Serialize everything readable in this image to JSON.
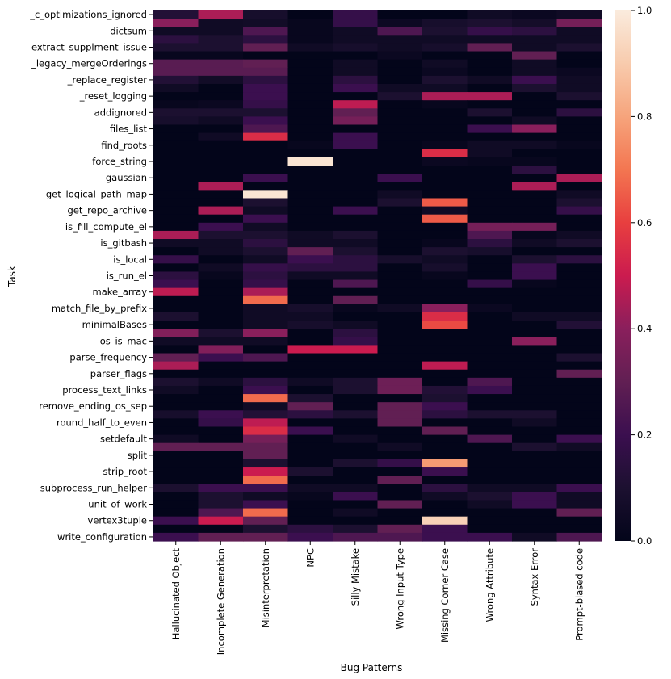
{
  "chart_data": {
    "type": "heatmap",
    "xlabel": "Bug Patterns",
    "ylabel": "Task",
    "x_categories": [
      "Hallucinated Object",
      "Incomplete Generation",
      "Misinterpretation",
      "NPC",
      "Silly Mistake",
      "Wrong Input Type",
      "Missing Corner Case",
      "Wrong Attribute",
      "Syntax Error",
      "Prompt-biased code"
    ],
    "y_labeled_rows": [
      "_c_optimizations_ignored",
      "_dictsum",
      "_extract_supplment_issue",
      "_legacy_mergeOrderings",
      "_replace_register",
      "_reset_logging",
      "addignored",
      "files_list",
      "find_roots",
      "force_string",
      "gaussian",
      "get_logical_path_map",
      "get_repo_archive",
      "is_fill_compute_el",
      "is_gitbash",
      "is_local",
      "is_run_el",
      "make_array",
      "match_file_by_prefix",
      "minimalBases",
      "os_is_mac",
      "parse_frequency",
      "parser_flags",
      "process_text_links",
      "remove_ending_os_sep",
      "round_half_to_even",
      "setdefault",
      "split",
      "strip_root",
      "subprocess_run_helper",
      "unit_of_work",
      "vertex3tuple",
      "write_configuration"
    ],
    "row_count": 65,
    "values": [
      [
        0.12,
        0.45,
        0.08,
        0,
        0.18,
        0,
        0,
        0.05,
        0.03,
        0.05
      ],
      [
        0.4,
        0.05,
        0.06,
        0.02,
        0.18,
        0.04,
        0.08,
        0.1,
        0.07,
        0.35
      ],
      [
        0.05,
        0.05,
        0.25,
        0.02,
        0.05,
        0.25,
        0.1,
        0.18,
        0.15,
        0.05
      ],
      [
        0.15,
        0.1,
        0.15,
        0.02,
        0.05,
        0.05,
        0.05,
        0.05,
        0.05,
        0.05
      ],
      [
        0.1,
        0.1,
        0.3,
        0.05,
        0.08,
        0.05,
        0.08,
        0.3,
        0.05,
        0.1
      ],
      [
        0.02,
        0.02,
        0,
        0,
        0,
        0.03,
        0,
        0,
        0.3,
        0
      ],
      [
        0.28,
        0.28,
        0.3,
        0,
        0.05,
        0,
        0.05,
        0,
        0.05,
        0
      ],
      [
        0.28,
        0.28,
        0.28,
        0,
        0.05,
        0,
        0.03,
        0,
        0.05,
        0.03
      ],
      [
        0.12,
        0.06,
        0.15,
        0,
        0.15,
        0,
        0.1,
        0.05,
        0.2,
        0.05
      ],
      [
        0.05,
        0,
        0.2,
        0,
        0.2,
        0.05,
        0.05,
        0,
        0.1,
        0.05
      ],
      [
        0,
        0,
        0.2,
        0,
        0,
        0.1,
        0.45,
        0.45,
        0,
        0.1
      ],
      [
        0.02,
        0.03,
        0.18,
        0,
        0.48,
        0,
        0.02,
        0,
        0,
        0
      ],
      [
        0.1,
        0.1,
        0.1,
        0,
        0.3,
        0,
        0,
        0.1,
        0,
        0.15
      ],
      [
        0.08,
        0.05,
        0.2,
        0,
        0.35,
        0,
        0,
        0,
        0.05,
        0
      ],
      [
        0,
        0,
        0.25,
        0,
        0,
        0,
        0,
        0.2,
        0.4,
        0
      ],
      [
        0,
        0.05,
        0.55,
        0,
        0.2,
        0,
        0,
        0,
        0,
        0
      ],
      [
        0,
        0,
        0,
        0.02,
        0.2,
        0,
        0.02,
        0.05,
        0.05,
        0.02
      ],
      [
        0,
        0,
        0,
        0,
        0,
        0,
        0.55,
        0.05,
        0,
        0
      ],
      [
        0,
        0,
        0,
        0.98,
        0,
        0,
        0.03,
        0.02,
        0.02,
        0
      ],
      [
        0,
        0,
        0,
        0,
        0,
        0,
        0,
        0,
        0.15,
        0
      ],
      [
        0,
        0,
        0.2,
        0,
        0,
        0.2,
        0,
        0,
        0,
        0.45
      ],
      [
        0,
        0.45,
        0,
        0,
        0,
        0,
        0,
        0,
        0.45,
        0
      ],
      [
        0,
        0,
        0.98,
        0,
        0,
        0.05,
        0,
        0,
        0,
        0.05
      ],
      [
        0,
        0,
        0.1,
        0,
        0,
        0.1,
        0.65,
        0,
        0,
        0.1
      ],
      [
        0,
        0.45,
        0.05,
        0,
        0.2,
        0,
        0.05,
        0,
        0,
        0.18
      ],
      [
        0,
        0,
        0.2,
        0,
        0,
        0,
        0.65,
        0,
        0,
        0
      ],
      [
        0,
        0.2,
        0.05,
        0,
        0,
        0,
        0,
        0.35,
        0.35,
        0
      ],
      [
        0.45,
        0.1,
        0.1,
        0.05,
        0.1,
        0,
        0,
        0.25,
        0.02,
        0.05
      ],
      [
        0.05,
        0.05,
        0.15,
        0.05,
        0.05,
        0,
        0.02,
        0.15,
        0.05,
        0.1
      ],
      [
        0,
        0.05,
        0.1,
        0.3,
        0.1,
        0,
        0.1,
        0.08,
        0,
        0
      ],
      [
        0.18,
        0,
        0.05,
        0.2,
        0.15,
        0.08,
        0.05,
        0,
        0.1,
        0.15
      ],
      [
        0,
        0.05,
        0.18,
        0.15,
        0.15,
        0,
        0.08,
        0,
        0.2,
        0
      ],
      [
        0.15,
        0.02,
        0.15,
        0.05,
        0.05,
        0,
        0.02,
        0,
        0.2,
        0
      ],
      [
        0.2,
        0,
        0.18,
        0,
        0.25,
        0,
        0,
        0.18,
        0.02,
        0
      ],
      [
        0.48,
        0,
        0.45,
        0,
        0,
        0,
        0,
        0,
        0,
        0
      ],
      [
        0,
        0,
        0.68,
        0,
        0.3,
        0,
        0,
        0,
        0,
        0
      ],
      [
        0,
        0,
        0.05,
        0.08,
        0.02,
        0.05,
        0.4,
        0.03,
        0,
        0
      ],
      [
        0.1,
        0,
        0.05,
        0.05,
        0,
        0,
        0.55,
        0,
        0.05,
        0.05
      ],
      [
        0,
        0,
        0.05,
        0.08,
        0.05,
        0,
        0.62,
        0,
        0,
        0.12
      ],
      [
        0.38,
        0.1,
        0.4,
        0,
        0.15,
        0,
        0,
        0,
        0,
        0
      ],
      [
        0.05,
        0.05,
        0.05,
        0,
        0.18,
        0,
        0,
        0,
        0.4,
        0
      ],
      [
        0,
        0.38,
        0,
        0.5,
        0.5,
        0,
        0,
        0,
        0,
        0
      ],
      [
        0.3,
        0.2,
        0.25,
        0,
        0,
        0,
        0,
        0,
        0,
        0.1
      ],
      [
        0.45,
        0,
        0,
        0,
        0,
        0,
        0.48,
        0,
        0,
        0
      ],
      [
        0,
        0,
        0,
        0,
        0,
        0,
        0,
        0,
        0,
        0.3
      ],
      [
        0.1,
        0.05,
        0.15,
        0.05,
        0.1,
        0.33,
        0,
        0.25,
        0,
        0
      ],
      [
        0.05,
        0,
        0.2,
        0,
        0.1,
        0.33,
        0.12,
        0.2,
        0,
        0
      ],
      [
        0,
        0,
        0.68,
        0.1,
        0,
        0,
        0.1,
        0,
        0,
        0
      ],
      [
        0,
        0,
        0.05,
        0.3,
        0,
        0.3,
        0.2,
        0,
        0,
        0
      ],
      [
        0.08,
        0.2,
        0.12,
        0.15,
        0.1,
        0.3,
        0.15,
        0.1,
        0.1,
        0
      ],
      [
        0,
        0.18,
        0.48,
        0,
        0,
        0.3,
        0,
        0,
        0.05,
        0
      ],
      [
        0,
        0,
        0.55,
        0.2,
        0,
        0,
        0.3,
        0,
        0,
        0
      ],
      [
        0.05,
        0,
        0.35,
        0,
        0.05,
        0,
        0,
        0.25,
        0,
        0.2
      ],
      [
        0.3,
        0.3,
        0.3,
        0,
        0,
        0.05,
        0,
        0,
        0.1,
        0.05
      ],
      [
        0,
        0,
        0.3,
        0,
        0,
        0,
        0,
        0,
        0,
        0
      ],
      [
        0,
        0,
        0.1,
        0,
        0.1,
        0.18,
        0.78,
        0,
        0,
        0
      ],
      [
        0,
        0,
        0.5,
        0.1,
        0,
        0,
        0.2,
        0,
        0,
        0
      ],
      [
        0,
        0,
        0.68,
        0,
        0,
        0.3,
        0,
        0,
        0,
        0
      ],
      [
        0.1,
        0.2,
        0.2,
        0.05,
        0.05,
        0,
        0.15,
        0.05,
        0.05,
        0.2
      ],
      [
        0,
        0.1,
        0.05,
        0.02,
        0.2,
        0,
        0.05,
        0.1,
        0.2,
        0.05
      ],
      [
        0,
        0.1,
        0.2,
        0,
        0,
        0.3,
        0,
        0.05,
        0.2,
        0.05
      ],
      [
        0,
        0.25,
        0.68,
        0,
        0.05,
        0,
        0,
        0,
        0,
        0.3
      ],
      [
        0.2,
        0.5,
        0.3,
        0,
        0,
        0,
        0.92,
        0,
        0,
        0
      ],
      [
        0,
        0,
        0.1,
        0.15,
        0.1,
        0.3,
        0.2,
        0,
        0,
        0
      ],
      [
        0.2,
        0.3,
        0.3,
        0.2,
        0.25,
        0.25,
        0.2,
        0.2,
        0.05,
        0.25
      ]
    ],
    "colorbar": {
      "range": [
        0,
        1
      ],
      "ticks": [
        "0.0",
        "0.2",
        "0.4",
        "0.6",
        "0.8",
        "1.0"
      ],
      "colormap": "rocket"
    }
  }
}
